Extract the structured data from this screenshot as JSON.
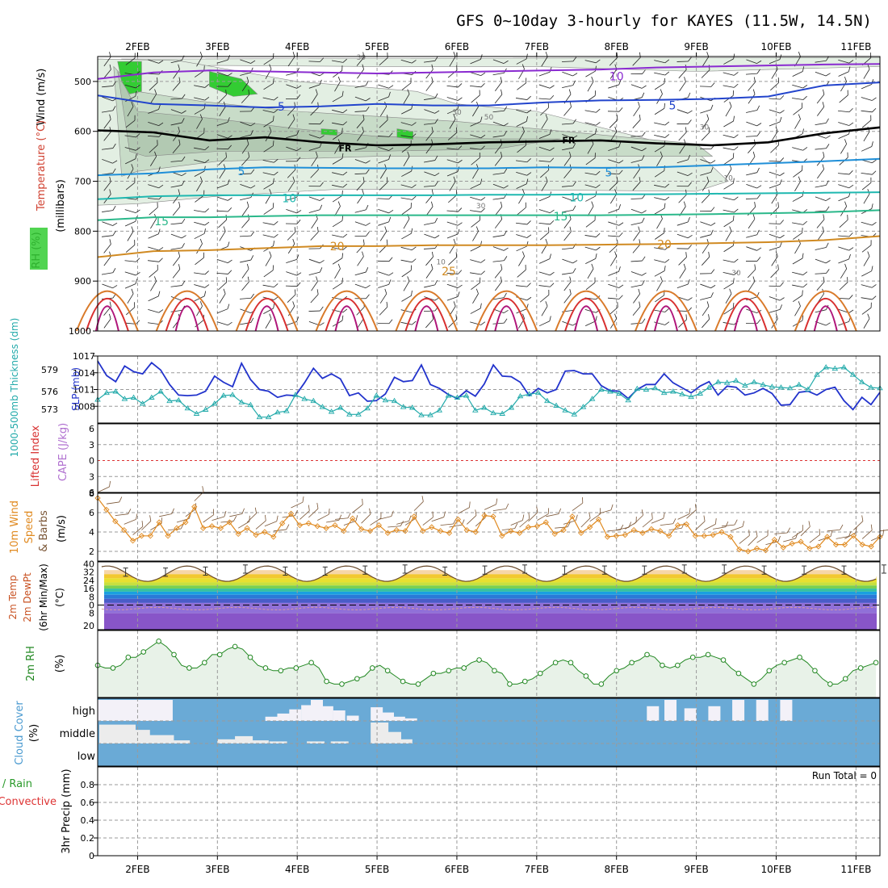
{
  "title": "GFS 0~10day 3-hourly for KAYES (11.5W, 14.5N)",
  "x_axis": {
    "labels": [
      "2FEB",
      "3FEB",
      "4FEB",
      "5FEB",
      "6FEB",
      "7FEB",
      "8FEB",
      "9FEB",
      "10FEB",
      "11FEB"
    ],
    "start_day": 1.5,
    "end_day": 11.3
  },
  "colors": {
    "frame": "#000000",
    "grid": "#9a9a9a",
    "rh_light": "#e3efe3",
    "rh_mid": "#c8dcc8",
    "rh_dark": "#33cc33",
    "freezing": "#000000",
    "slp": "#2233cc",
    "thickness": "#22aaaa",
    "li_zero": "#dd3333",
    "wind_speed": "#e08a20",
    "wind_barb": "#7a5535",
    "rh2m": "#228822",
    "rh2m_fill": "#e8f2e8",
    "cloud": "#6aaad6",
    "cloud_clear": "#f3f1f8"
  },
  "chart_data": [
    {
      "panel": "upper-air",
      "type": "contour",
      "ylabel_parts": [
        "Wind (m/s)",
        "Temperature (°C)",
        "RH (%)",
        "(millibars)"
      ],
      "ylim": [
        1000,
        450
      ],
      "yticks": [
        500,
        600,
        700,
        800,
        900,
        1000
      ],
      "temperature_contours": [
        {
          "label": "10",
          "level": -10,
          "color": "#8a2bd0",
          "y": [
            495,
            482,
            478,
            480,
            482,
            484,
            482,
            480,
            478,
            476,
            472,
            470,
            468,
            466,
            465
          ]
        },
        {
          "label": "5",
          "level": -5,
          "color": "#2244cc",
          "y": [
            528,
            545,
            548,
            552,
            550,
            545,
            548,
            548,
            542,
            538,
            537,
            535,
            530,
            508,
            502
          ]
        },
        {
          "label": "FR",
          "level": 0,
          "color": "#000000",
          "y": [
            598,
            602,
            618,
            612,
            622,
            628,
            626,
            622,
            620,
            618,
            624,
            628,
            622,
            604,
            592
          ]
        },
        {
          "label": "5",
          "level": 5,
          "color": "#1f8fd8",
          "y": [
            688,
            684,
            676,
            672,
            673,
            674,
            674,
            674,
            672,
            673,
            672,
            668,
            664,
            660,
            655
          ]
        },
        {
          "label": "10",
          "level": 10,
          "color": "#1fb8b0",
          "y": [
            736,
            730,
            728,
            728,
            728,
            728,
            728,
            727,
            727,
            726,
            726,
            725,
            724,
            723,
            722
          ]
        },
        {
          "label": "15",
          "level": 15,
          "color": "#2ab88a",
          "y": [
            778,
            772,
            772,
            770,
            768,
            768,
            768,
            768,
            768,
            768,
            767,
            766,
            764,
            762,
            758
          ]
        },
        {
          "label": "20",
          "level": 20,
          "color": "#d08a22",
          "y": [
            852,
            840,
            838,
            834,
            830,
            830,
            828,
            828,
            828,
            827,
            826,
            824,
            822,
            818,
            810
          ]
        }
      ],
      "rh_contour_labels": [
        "30",
        "30",
        "50",
        "30",
        "30",
        "10",
        "10",
        "30"
      ],
      "annotations": [
        "FR",
        "FR",
        "10",
        "5",
        "5",
        "5",
        "10",
        "10",
        "15",
        "15",
        "20",
        "20",
        "25"
      ]
    },
    {
      "panel": "thickness-slp",
      "type": "line",
      "ylabel_left": "1000-500mb Thickness (dm)",
      "ylabel_right": "SLP (mb)",
      "left_ticks": [
        "579",
        "576",
        "573"
      ],
      "right_ticks": [
        "1017",
        "1014",
        "1011",
        "1008"
      ],
      "slp_range": [
        1005,
        1017
      ],
      "series": [
        {
          "name": "SLP (mb)",
          "axis": "right",
          "values": [
            1016.1,
            1013.5,
            1012.4,
            1015.2,
            1014.2,
            1013.8,
            1015.8,
            1014.5,
            1011.9,
            1010.0,
            1009.9,
            1010.0,
            1010.7,
            1013.4,
            1012.3,
            1011.5,
            1015.7,
            1012.8,
            1011.0,
            1010.7,
            1009.6,
            1010.0,
            1009.9,
            1012.2,
            1014.8,
            1013.0,
            1013.8,
            1012.9,
            1009.9,
            1010.4,
            1008.9,
            1009.0,
            1010.2,
            1013.2,
            1012.4,
            1012.6,
            1015.4,
            1011.9,
            1011.2,
            1010.1,
            1009.4,
            1010.8,
            1009.8,
            1012.0,
            1015.4,
            1013.4,
            1013.3,
            1012.3,
            1009.9,
            1011.2,
            1010.4,
            1011.0,
            1014.3,
            1014.4,
            1013.8,
            1013.8,
            1011.7,
            1010.8,
            1010.7,
            1009.4,
            1011.0,
            1011.9,
            1011.9,
            1013.8,
            1012.2,
            1011.3,
            1010.4,
            1011.6,
            1012.4,
            1010.0,
            1011.6,
            1011.4,
            1010.0,
            1010.4,
            1011.2,
            1010.3,
            1008.2,
            1008.3,
            1010.5,
            1010.7,
            1010.0,
            1011.0,
            1011.4,
            1009.0,
            1007.4,
            1009.6,
            1008.3,
            1010.5
          ]
        },
        {
          "name": "Thickness (dm)",
          "axis": "left",
          "values": [
            575.0,
            576.0,
            576.2,
            575.1,
            575.3,
            574.4,
            575.3,
            576.2,
            574.8,
            574.9,
            573.7,
            572.9,
            573.5,
            574.4,
            575.6,
            575.7,
            574.6,
            574.2,
            572.4,
            572.4,
            573.1,
            573.3,
            575.7,
            575.1,
            574.8,
            573.9,
            573.2,
            573.8,
            572.8,
            572.8,
            573.7,
            575.6,
            574.9,
            574.8,
            573.9,
            573.8,
            572.7,
            572.7,
            573.4,
            575.6,
            575.3,
            575.6,
            573.4,
            573.8,
            573.0,
            572.9,
            573.8,
            575.5,
            575.8,
            576.0,
            574.8,
            574.1,
            573.4,
            572.8,
            573.9,
            575.1,
            576.5,
            576.2,
            575.9,
            574.9,
            576.6,
            576.5,
            576.7,
            576.0,
            576.2,
            575.8,
            575.4,
            575.9,
            576.8,
            577.6,
            577.5,
            577.8,
            577.1,
            577.6,
            577.2,
            576.9,
            576.8,
            576.7,
            577.2,
            576.5,
            578.7,
            579.8,
            579.6,
            579.8,
            578.7,
            577.6,
            576.8,
            576.7
          ]
        }
      ]
    },
    {
      "panel": "cape-li",
      "type": "line",
      "ylabel_left": "Lifted Index",
      "ylabel_right": "CAPE (J/kg)",
      "yticks": [
        "6",
        "3",
        "0",
        "3",
        "6"
      ],
      "lifted_index_zero_line": 0
    },
    {
      "panel": "wind-10m",
      "type": "line",
      "ylabel": "10m Wind Speed & Barbs (m/s)",
      "yticks": [
        2,
        4,
        6,
        8
      ],
      "ylim": [
        1,
        8
      ],
      "series": [
        {
          "name": "10m Wind Speed",
          "values": [
            7.5,
            6.3,
            5.1,
            4.2,
            3.1,
            3.6,
            3.6,
            5.0,
            3.6,
            4.4,
            5.0,
            6.6,
            4.4,
            4.6,
            4.4,
            5.0,
            3.8,
            4.4,
            3.7,
            4.0,
            3.5,
            4.9,
            5.9,
            4.7,
            4.9,
            4.6,
            4.4,
            4.7,
            4.1,
            5.4,
            4.3,
            4.1,
            4.7,
            3.9,
            4.2,
            4.1,
            5.6,
            4.1,
            4.5,
            4.1,
            3.9,
            5.3,
            4.2,
            4.0,
            5.7,
            5.6,
            3.6,
            4.1,
            3.9,
            4.5,
            4.6,
            5.0,
            3.8,
            4.2,
            5.6,
            3.9,
            4.5,
            5.3,
            3.5,
            3.6,
            3.7,
            4.2,
            3.9,
            4.3,
            4.1,
            3.6,
            4.7,
            4.8,
            3.6,
            3.6,
            3.7,
            4.0,
            3.5,
            2.2,
            2.0,
            2.3,
            2.1,
            3.2,
            2.4,
            2.8,
            3.0,
            2.3,
            2.5,
            3.5,
            2.7,
            2.7,
            3.6,
            2.7,
            2.5,
            3.5
          ]
        }
      ]
    },
    {
      "panel": "temp-2m",
      "type": "area",
      "ylabel": "2m Temp 2m DewPt (6hr Min/Max) (°C)",
      "yticks": [
        40,
        32,
        24,
        16,
        8,
        0,
        -8,
        -20
      ],
      "ytick_labels": [
        "40",
        "32",
        "24",
        "16",
        "8",
        "0",
        "8",
        "20"
      ],
      "temp_max": [
        36,
        36,
        37,
        39,
        37,
        37,
        38,
        39,
        37,
        38,
        39,
        38,
        38,
        38,
        39,
        39,
        38,
        38,
        38,
        39
      ],
      "temp_min": [
        25,
        24,
        24,
        24,
        24,
        24,
        23,
        24,
        24,
        24,
        24,
        24,
        24,
        24,
        24,
        24,
        24,
        24,
        24,
        24
      ],
      "dewpoint_approx": [
        -1,
        -2,
        -4,
        -3,
        -5,
        -3,
        -3,
        -4,
        -5,
        -3,
        -3,
        -4,
        -3,
        -3,
        -4,
        -3,
        -3,
        -4,
        -3,
        -4
      ]
    },
    {
      "panel": "rh-2m",
      "type": "line",
      "ylabel": "2m RH (%)",
      "ylim": [
        0,
        25
      ],
      "series": [
        {
          "name": "2m RH",
          "values": [
            12,
            11,
            11,
            12,
            15,
            15,
            17,
            19,
            21,
            19,
            16,
            12,
            11,
            11,
            13,
            16,
            16,
            18,
            19,
            18,
            15,
            12,
            11,
            10,
            10,
            11,
            11,
            12,
            13,
            11,
            6,
            5,
            5,
            6,
            7,
            8,
            11,
            12,
            10,
            8,
            6,
            5,
            5,
            7,
            9,
            9,
            10,
            11,
            11,
            13,
            14,
            13,
            10,
            9,
            5,
            5,
            6,
            7,
            9,
            11,
            13,
            14,
            13,
            10,
            8,
            5,
            5,
            8,
            10,
            11,
            13,
            14,
            16,
            15,
            12,
            11,
            12,
            14,
            15,
            15,
            16,
            15,
            14,
            11,
            9,
            7,
            5,
            7,
            10,
            12,
            13,
            14,
            15,
            13,
            10,
            7,
            5,
            5,
            7,
            10,
            11,
            12,
            13
          ]
        }
      ]
    },
    {
      "panel": "cloud-cover",
      "type": "area",
      "ylabel": "Cloud Cover (%)",
      "layers": [
        "high",
        "middle",
        "low"
      ],
      "high_blank_ranges": [
        [
          1.5,
          2.44
        ]
      ],
      "high_partial": [
        {
          "day": 3.6,
          "frac": 0.2
        },
        {
          "day": 3.75,
          "frac": 0.35
        },
        {
          "day": 3.9,
          "frac": 0.55
        },
        {
          "day": 4.05,
          "frac": 0.75
        },
        {
          "day": 4.17,
          "frac": 1.0
        },
        {
          "day": 4.3,
          "frac": 0.7
        },
        {
          "day": 4.45,
          "frac": 0.5
        },
        {
          "day": 4.62,
          "frac": 0.25
        },
        {
          "day": 4.92,
          "frac": 0.65
        },
        {
          "day": 5.06,
          "frac": 0.4
        },
        {
          "day": 5.2,
          "frac": 0.2
        },
        {
          "day": 5.35,
          "frac": 0.12
        },
        {
          "day": 8.38,
          "frac": 0.7
        },
        {
          "day": 8.6,
          "frac": 1.0
        },
        {
          "day": 8.85,
          "frac": 0.6
        },
        {
          "day": 9.15,
          "frac": 0.7
        },
        {
          "day": 9.45,
          "frac": 1.0
        },
        {
          "day": 9.75,
          "frac": 1.0
        },
        {
          "day": 10.05,
          "frac": 1.0
        }
      ],
      "middle_partial": [
        {
          "day": 1.52,
          "frac": 0.9
        },
        {
          "day": 1.7,
          "frac": 0.65
        },
        {
          "day": 2.0,
          "frac": 0.4
        },
        {
          "day": 2.2,
          "frac": 0.15
        },
        {
          "day": 3.0,
          "frac": 0.2
        },
        {
          "day": 3.22,
          "frac": 0.35
        },
        {
          "day": 3.42,
          "frac": 0.15
        },
        {
          "day": 3.65,
          "frac": 0.1
        },
        {
          "day": 4.12,
          "frac": 0.1
        },
        {
          "day": 4.42,
          "frac": 0.1
        },
        {
          "day": 4.92,
          "frac": 1.0
        },
        {
          "day": 5.08,
          "frac": 0.55
        },
        {
          "day": 5.22,
          "frac": 0.2
        }
      ]
    },
    {
      "panel": "precip",
      "type": "bar",
      "ylabel": "3hr Precip (mm)",
      "ylabel_left": "Total / Rain Convective",
      "yticks": [
        0,
        0.2,
        0.4,
        0.6,
        0.8
      ],
      "ylim": [
        0,
        1
      ],
      "run_total_label": "Run Total = 0",
      "values": []
    }
  ]
}
